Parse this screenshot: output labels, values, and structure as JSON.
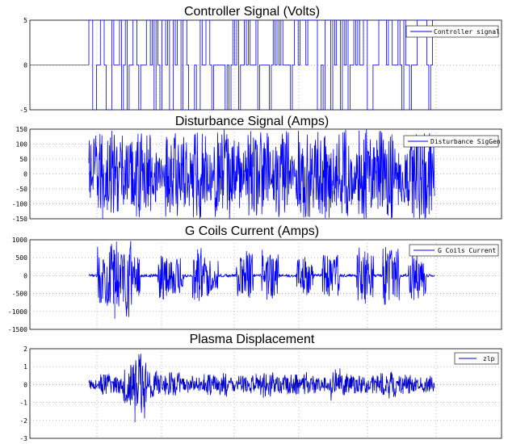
{
  "chart_data": [
    {
      "type": "line",
      "title": "Controller Signal (Volts)",
      "ylim": [
        -5,
        5
      ],
      "yticks": [
        "5",
        "0",
        "-5"
      ],
      "grid": true,
      "legend_position": "top-right",
      "series": [
        {
          "name": "Controller signal",
          "color": "#0000ff",
          "kind": "bang-bang",
          "values": [
            -5,
            5,
            -5,
            5,
            0,
            5,
            -5,
            5,
            -5,
            0,
            5,
            -5,
            5,
            -5,
            5,
            0,
            -5,
            5,
            -5,
            5,
            -5,
            5,
            0,
            5,
            -5,
            5,
            -5,
            0,
            -5,
            5,
            -5,
            5,
            0,
            5,
            -5,
            5,
            -5,
            5,
            0,
            -5,
            5,
            -5,
            5,
            -5,
            0,
            5,
            -5,
            5,
            -5,
            5,
            -5,
            5,
            0,
            -5,
            5,
            -5,
            5,
            -5,
            5,
            -5
          ]
        }
      ]
    },
    {
      "type": "line",
      "title": "Disturbance Signal (Amps)",
      "ylim": [
        -150,
        150
      ],
      "yticks": [
        "150",
        "100",
        "50",
        "0",
        "-50",
        "-100",
        "-150"
      ],
      "grid": true,
      "legend_position": "top-right",
      "series": [
        {
          "name": "Disturbance SigGen",
          "color": "#0000ff",
          "kind": "noise",
          "amplitude": 150,
          "values": [
            -120,
            140,
            -150,
            150,
            -130,
            110,
            -150,
            150,
            -140,
            100,
            -60,
            150,
            -150,
            130,
            -110,
            150,
            -150,
            90,
            -145,
            150,
            -150,
            120,
            -80,
            150,
            -150,
            140,
            -100,
            150,
            -150,
            60,
            -150,
            150,
            -130,
            145,
            -150,
            110,
            -150,
            150,
            -90,
            150,
            -150,
            130,
            -150,
            150,
            -120,
            100,
            -150,
            150,
            -150,
            140
          ]
        }
      ]
    },
    {
      "type": "line",
      "title": "G Coils Current (Amps)",
      "ylim": [
        -1500,
        1000
      ],
      "yticks": [
        "1000",
        "500",
        "0",
        "-500",
        "-1000",
        "-1500"
      ],
      "grid": true,
      "legend_position": "top-right",
      "series": [
        {
          "name": "G Coils  Current",
          "color": "#0000ff",
          "kind": "bursts",
          "peak_max": 950,
          "peak_min": -1200,
          "values": [
            0,
            800,
            -900,
            950,
            -1200,
            600,
            0,
            0,
            700,
            -600,
            500,
            0,
            -800,
            650,
            -500,
            0,
            0,
            600,
            -700,
            0,
            750,
            -650,
            0,
            0,
            500,
            -550,
            0,
            650,
            -600,
            0,
            0,
            800,
            -700,
            0,
            850,
            -750,
            0,
            700,
            -650,
            0
          ]
        }
      ]
    },
    {
      "type": "line",
      "title": "Plasma Displacement",
      "ylim": [
        -3,
        2
      ],
      "yticks": [
        "2",
        "1",
        "0",
        "-1",
        "-2",
        "-3"
      ],
      "grid": true,
      "legend_position": "top-right",
      "series": [
        {
          "name": "zlp",
          "color": "#0000cc",
          "kind": "noise",
          "amplitude": 0.8,
          "values": [
            0,
            0.6,
            -0.5,
            1.2,
            -2.1,
            0.8,
            -0.6,
            0.7,
            -0.5,
            0.4,
            -0.6,
            0.7,
            -0.4,
            0.5,
            -0.6,
            0.8,
            -0.5,
            0.6,
            -0.7,
            0.5,
            -0.4,
            0.9,
            -0.6,
            0.5,
            -0.5,
            0.7,
            -0.8,
            0.6,
            -0.4,
            0.5
          ]
        }
      ]
    }
  ]
}
